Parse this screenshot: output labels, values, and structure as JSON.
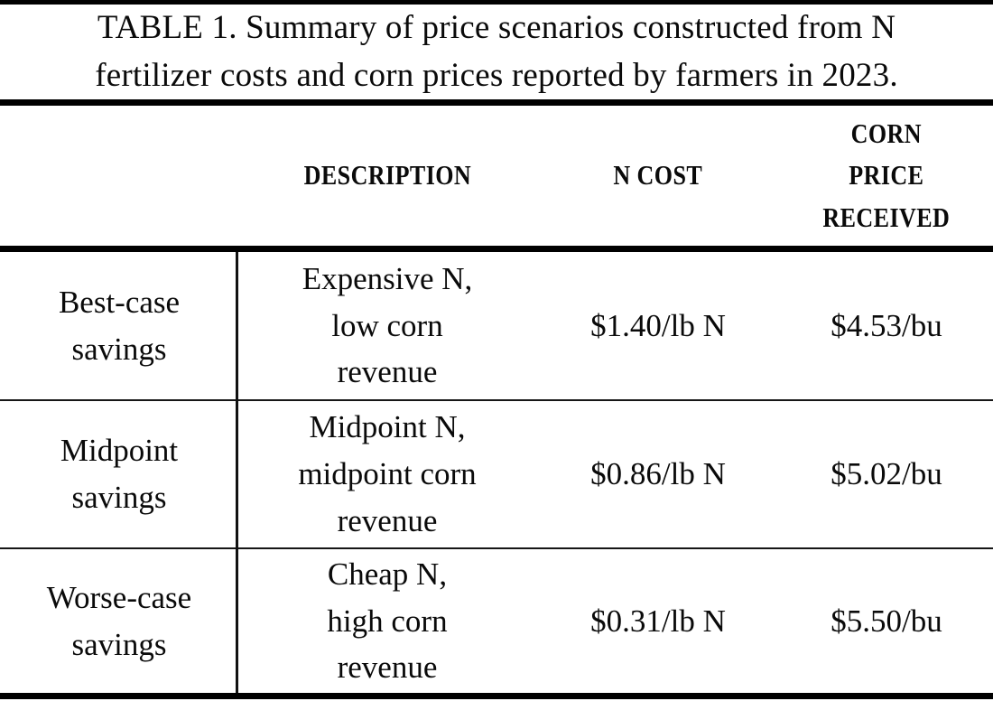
{
  "figure": {
    "caption_lines": [
      "TABLE 1. Summary of price scenarios constructed from N",
      "fertilizer costs and corn prices reported by farmers in 2023."
    ]
  },
  "table": {
    "columns": [
      {
        "label": ""
      },
      {
        "label": "DESCRIPTION"
      },
      {
        "label": "N COST"
      },
      {
        "label": [
          "CORN",
          "PRICE",
          "RECEIVED"
        ]
      }
    ],
    "rows": [
      {
        "scenario": [
          "Best-case",
          "savings"
        ],
        "description": [
          "Expensive N,",
          "low corn",
          "revenue"
        ],
        "n_cost": "$1.40/lb N",
        "corn_price": "$4.53/bu"
      },
      {
        "scenario": [
          "Midpoint",
          "savings"
        ],
        "description": [
          "Midpoint N,",
          "midpoint corn",
          "revenue"
        ],
        "n_cost": "$0.86/lb N",
        "corn_price": "$5.02/bu"
      },
      {
        "scenario": [
          "Worse-case",
          "savings"
        ],
        "description": [
          "Cheap N,",
          "high corn",
          "revenue"
        ],
        "n_cost": "$0.31/lb N",
        "corn_price": "$5.50/bu"
      }
    ]
  },
  "colors": {
    "background": "#ffffff",
    "text": "#0a0a0a",
    "rule": "#000000"
  },
  "chart_data": {
    "type": "table",
    "title": "TABLE 1. Summary of price scenarios constructed from N fertilizer costs and corn prices reported by farmers in 2023.",
    "columns": [
      "",
      "DESCRIPTION",
      "N COST",
      "CORN PRICE RECEIVED"
    ],
    "rows": [
      [
        "Best-case savings",
        "Expensive N, low corn revenue",
        "$1.40/lb N",
        "$4.53/bu"
      ],
      [
        "Midpoint savings",
        "Midpoint N, midpoint corn revenue",
        "$0.86/lb N",
        "$5.02/bu"
      ],
      [
        "Worse-case savings",
        "Cheap N, high corn revenue",
        "$0.31/lb N",
        "$5.50/bu"
      ]
    ]
  }
}
